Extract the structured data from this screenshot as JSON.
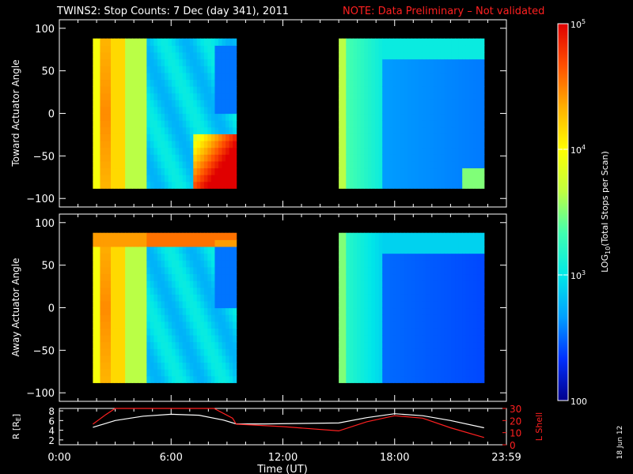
{
  "title": {
    "main": "TWINS2: Stop Counts:  7 Dec (day 341), 2011",
    "note": "NOTE: Data Preliminary – Not validated",
    "note_color": "#ff2020"
  },
  "date_stamp": "18 Jun 12",
  "colorbar": {
    "label": "LOG10(Total Stops per Scan)",
    "scale": "log",
    "range": [
      100,
      100000
    ],
    "tick_labels": [
      "10^5",
      "10^4",
      "10^3",
      "100"
    ],
    "tick_values": [
      100000,
      10000,
      1000,
      100
    ],
    "colormap": [
      "#00008c",
      "#0030ff",
      "#00a0ff",
      "#00e8e8",
      "#40ffb0",
      "#c0ff40",
      "#ffff00",
      "#ffb000",
      "#ff5000",
      "#e00000"
    ]
  },
  "panels": {
    "toward": {
      "ylabel": "Toward Actuator Angle",
      "yticks": [
        "100",
        "50",
        "0",
        "−50",
        "−100"
      ],
      "ylim": [
        -110,
        110
      ]
    },
    "away": {
      "ylabel": "Away Actuator Angle",
      "yticks": [
        "100",
        "50",
        "0",
        "−50",
        "−100"
      ],
      "ylim": [
        -110,
        110
      ]
    }
  },
  "orbit": {
    "ylabel_left": "R [RE]",
    "ylabel_right": "L Shell",
    "left_ticks": [
      "8",
      "6",
      "4",
      "2"
    ],
    "right_ticks": [
      "30",
      "20",
      "10",
      "0"
    ],
    "right_color": "#ff2020"
  },
  "xaxis": {
    "label": "Time (UT)",
    "ticks": [
      "0:00",
      "6:00",
      "12:00",
      "18:00",
      "23:59"
    ]
  },
  "chart_data": [
    {
      "type": "heatmap",
      "title": "Toward Actuator Angle",
      "ylabel": "Toward Actuator Angle",
      "xlabel": "Time (UT)",
      "x_range_hours": [
        0,
        24
      ],
      "ylim": [
        -110,
        110
      ],
      "data_intervals_hours": [
        [
          1.8,
          9.5
        ],
        [
          15.0,
          22.8
        ]
      ],
      "angle_range": [
        -88,
        88
      ],
      "value_scale": "log10 counts (2 to 5)"
    },
    {
      "type": "heatmap",
      "title": "Away Actuator Angle",
      "ylabel": "Away Actuator Angle",
      "xlabel": "Time (UT)",
      "x_range_hours": [
        0,
        24
      ],
      "ylim": [
        -110,
        110
      ],
      "data_intervals_hours": [
        [
          1.8,
          9.5
        ],
        [
          15.0,
          22.8
        ]
      ],
      "angle_range": [
        -88,
        88
      ],
      "value_scale": "log10 counts (2 to 5)"
    },
    {
      "type": "line",
      "xlabel": "Time (UT)",
      "ylabel": "R [RE]",
      "ylim": [
        1,
        8.5
      ],
      "y2label": "L Shell",
      "y2lim": [
        0,
        30
      ],
      "series": [
        {
          "name": "R [RE]",
          "color": "#ffffff",
          "x": [
            1.8,
            3,
            4.5,
            6,
            7.5,
            8.8,
            9.5,
            11,
            13,
            15,
            16.5,
            18,
            19.5,
            21,
            22.8
          ],
          "y": [
            4.6,
            6.0,
            6.9,
            7.3,
            7.1,
            6.1,
            5.3,
            5.3,
            5.4,
            5.5,
            6.6,
            7.4,
            7.0,
            6.0,
            4.5
          ]
        },
        {
          "name": "L Shell",
          "color": "#ff2020",
          "x": [
            1.8,
            2.5,
            3.0,
            3.2,
            8.0,
            8.3,
            9.3,
            9.5,
            12.0,
            15.0,
            16.5,
            18.0,
            19.5,
            21.0,
            22.8
          ],
          "y": [
            17.0,
            25.0,
            31.0,
            31.0,
            31.0,
            31.0,
            22.0,
            17.0,
            15.0,
            11.5,
            19.0,
            24.0,
            22.0,
            14.0,
            6.0
          ]
        }
      ]
    }
  ]
}
